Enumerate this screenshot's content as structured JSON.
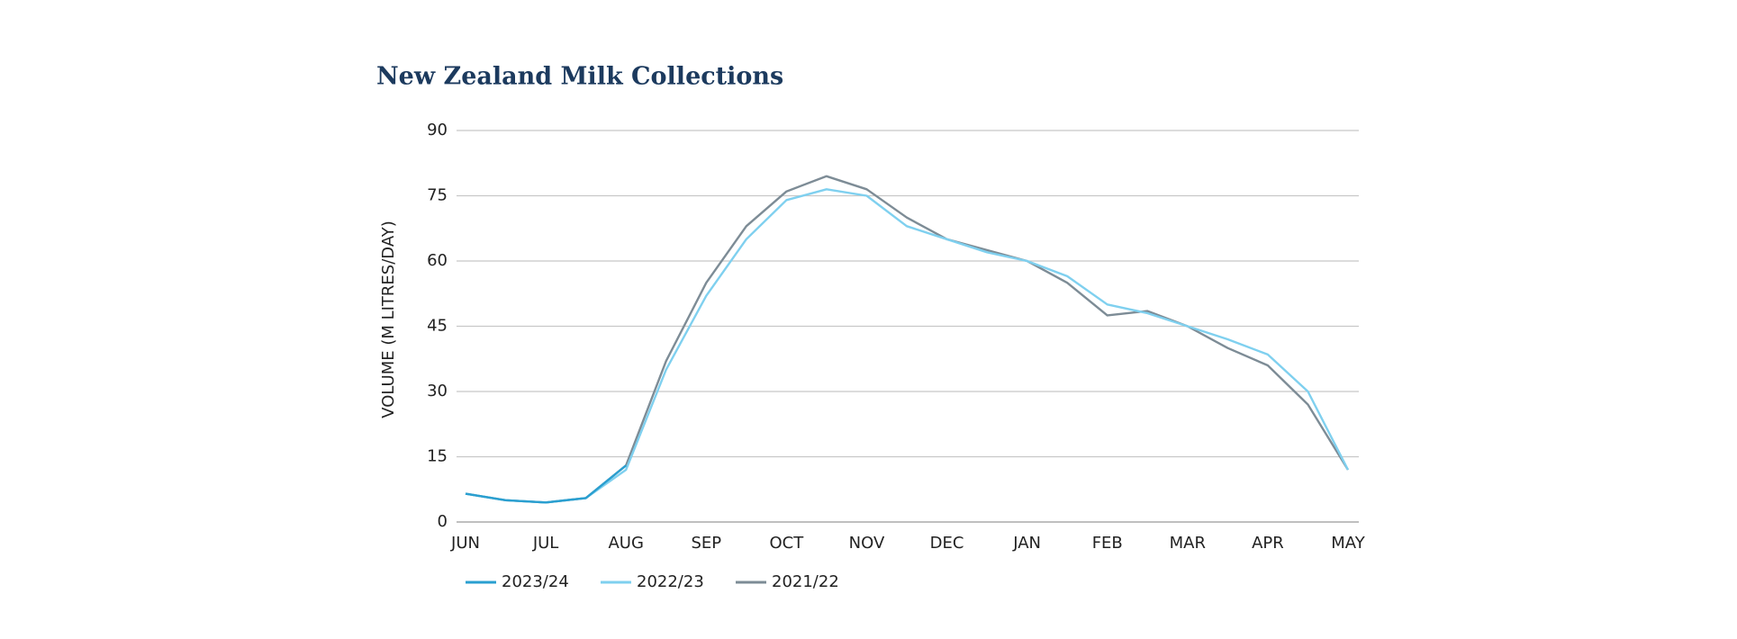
{
  "chart_data": {
    "type": "line",
    "title": "New Zealand Milk Collections",
    "y_label": "VOLUME (M LITRES/DAY)",
    "categories": [
      "JUN",
      null,
      "JUL",
      null,
      "AUG",
      null,
      "SEP",
      null,
      "OCT",
      null,
      "NOV",
      null,
      "DEC",
      null,
      "JAN",
      null,
      "FEB",
      null,
      "MAR",
      null,
      "APR",
      null,
      "MAY"
    ],
    "series": [
      {
        "name": "2023/24",
        "color": "#2a9fd0",
        "values": [
          6.5,
          5,
          4.5,
          5.5,
          13,
          null,
          null,
          null,
          null,
          null,
          null,
          null,
          null,
          null,
          null,
          null,
          null,
          null,
          null,
          null,
          null,
          null,
          null
        ]
      },
      {
        "name": "2022/23",
        "color": "#7fd0ef",
        "values": [
          6.5,
          5,
          4.5,
          5.5,
          12,
          35,
          52,
          65,
          74,
          76.5,
          75,
          68,
          65,
          62,
          60,
          56.5,
          50,
          48,
          45,
          42,
          38.5,
          30,
          12
        ]
      },
      {
        "name": "2021/22",
        "color": "#7d8c96",
        "values": [
          6.5,
          5,
          4.5,
          5.5,
          13,
          37,
          55,
          68,
          76,
          79.5,
          76.5,
          70,
          65,
          62.5,
          60,
          55,
          47.5,
          48.5,
          45,
          40,
          36,
          27,
          12
        ]
      }
    ],
    "ylim": [
      0,
      90
    ],
    "yticks": [
      0,
      15,
      30,
      45,
      60,
      75,
      90
    ],
    "grid": true
  }
}
